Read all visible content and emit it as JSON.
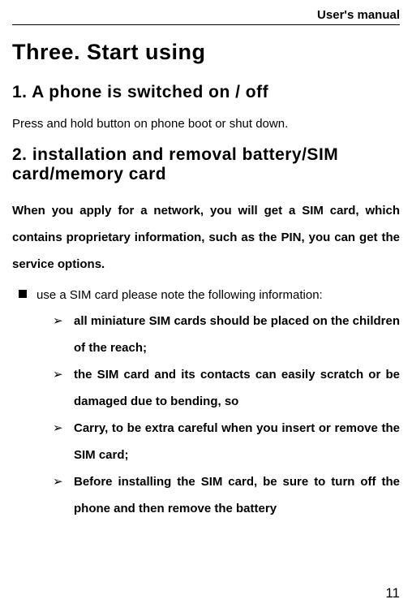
{
  "header": {
    "title": "User's manual"
  },
  "chapter": {
    "title": "Three.  Start  using"
  },
  "sections": [
    {
      "title": "1.  A phone  is  switched  on /  off",
      "body": "Press  and  hold  button on phone boot or  shut  down."
    },
    {
      "title": "2. installation  and  removal   battery/SIM card/memory  card",
      "intro": "When  you  apply  for  a  network,  you  will  get  a  SIM  card,  which  contains  proprietary  information,  such  as  the  PIN,  you  can  get  the  service  options.",
      "bullets": [
        {
          "text": "use  a  SIM  card please  note  the  following information:",
          "subitems": [
            "all  miniature  SIM  cards  should  be  placed  on  the  children  of  the  reach;",
            " the  SIM card  and  its  contacts can  easily scratch or be  damaged due  to  bending,  so",
            "Carry, to  be  extra  careful when you insert or remove  the  SIM  card;",
            "Before installing the SIM  card,  be  sure  to turn  off  the  phone and then remove  the  battery"
          ]
        }
      ]
    }
  ],
  "pageNumber": "11"
}
